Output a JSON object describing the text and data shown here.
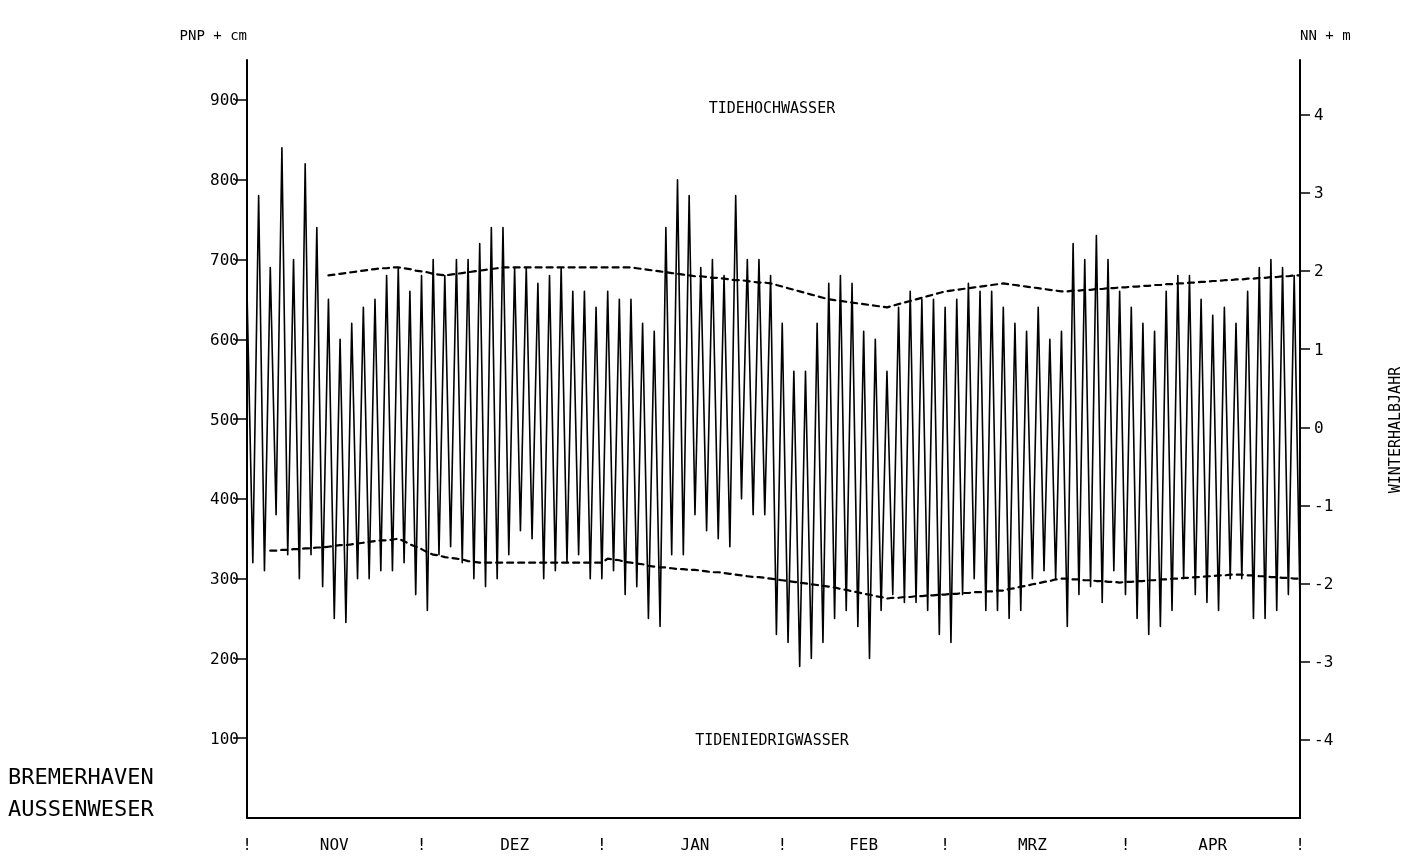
{
  "chart_data": {
    "type": "line",
    "ylabel": "PNP + cm",
    "y2label": "NN + m",
    "annotations": [
      "TIDEHOCHWASSER",
      "TIDENIEDRIGWASSER",
      "BREMERHAVEN",
      "AUSSENWESER",
      "WINTERHALBJAHR"
    ],
    "categories": [
      "!",
      null,
      null,
      null,
      null,
      null,
      null,
      null,
      null,
      null,
      null,
      null,
      null,
      null,
      null,
      "NOV",
      null,
      null,
      null,
      null,
      null,
      null,
      null,
      null,
      null,
      null,
      null,
      null,
      null,
      null,
      "!",
      null,
      null,
      null,
      null,
      null,
      null,
      null,
      null,
      null,
      null,
      null,
      null,
      null,
      null,
      null,
      "DEZ",
      null,
      null,
      null,
      null,
      null,
      null,
      null,
      null,
      null,
      null,
      null,
      null,
      null,
      null,
      "!",
      null,
      null,
      null,
      null,
      null,
      null,
      null,
      null,
      null,
      null,
      null,
      null,
      null,
      null,
      null,
      "JAN",
      null,
      null,
      null,
      null,
      null,
      null,
      null,
      null,
      null,
      null,
      null,
      null,
      null,
      null,
      "!",
      null,
      null,
      null,
      null,
      null,
      null,
      null,
      null,
      null,
      null,
      null,
      null,
      null,
      "FEB",
      null,
      null,
      null,
      null,
      null,
      null,
      null,
      null,
      null,
      null,
      null,
      null,
      null,
      "!",
      null,
      null,
      null,
      null,
      null,
      null,
      null,
      null,
      null,
      null,
      null,
      null,
      null,
      null,
      "MRZ",
      null,
      null,
      null,
      null,
      null,
      null,
      null,
      null,
      null,
      null,
      null,
      null,
      null,
      null,
      null,
      "!",
      null,
      null,
      null,
      null,
      null,
      null,
      null,
      null,
      null,
      null,
      null,
      null,
      null,
      null,
      "APR",
      null,
      null,
      null,
      null,
      null,
      null,
      null,
      null,
      null,
      null,
      null,
      null,
      null,
      null,
      "!"
    ],
    "ylim": [
      0,
      950
    ],
    "yticks": [
      100,
      200,
      300,
      400,
      500,
      600,
      700,
      800,
      900
    ],
    "y2lim": [
      -5,
      4.7
    ],
    "y2ticks": [
      -4,
      -3,
      -2,
      -1,
      0,
      1,
      2,
      3,
      4
    ],
    "grid": false,
    "marker": "none",
    "series": [
      {
        "color": "#000000",
        "line_style": "solid",
        "values": [
          660,
          320,
          780,
          310,
          690,
          380,
          840,
          330,
          700,
          300,
          820,
          330,
          740,
          290,
          650,
          250,
          600,
          245,
          620,
          300,
          640,
          300,
          650,
          310,
          680,
          310,
          690,
          320,
          660,
          280,
          680,
          260,
          700,
          330,
          680,
          340,
          700,
          320,
          700,
          300,
          720,
          290,
          740,
          300,
          740,
          330,
          690,
          360,
          690,
          350,
          670,
          300,
          680,
          310,
          690,
          320,
          660,
          330,
          660,
          300,
          640,
          300,
          660,
          310,
          650,
          280,
          650,
          290,
          620,
          250,
          610,
          240,
          740,
          330,
          800,
          330,
          780,
          380,
          690,
          360,
          700,
          350,
          680,
          340,
          780,
          400,
          700,
          380,
          700,
          380,
          680,
          230,
          620,
          220,
          560,
          190,
          560,
          200,
          620,
          220,
          670,
          250,
          680,
          260,
          670,
          240,
          610,
          200,
          600,
          260,
          560,
          280,
          640,
          270,
          660,
          270,
          650,
          260,
          650,
          230,
          640,
          220,
          650,
          280,
          670,
          300,
          660,
          260,
          660,
          260,
          640,
          250,
          620,
          260,
          610,
          300,
          640,
          310,
          600,
          300,
          610,
          240,
          720,
          280,
          700,
          290,
          730,
          270,
          700,
          310,
          660,
          280,
          640,
          250,
          620,
          230,
          610,
          240,
          660,
          260,
          680,
          300,
          680,
          280,
          650,
          270,
          630,
          260,
          640,
          300,
          620,
          300,
          660,
          250,
          690,
          250,
          700,
          260,
          690,
          280,
          680,
          270
        ]
      },
      {
        "color": "#000000",
        "line_style": "dashed",
        "values": [
          null,
          null,
          null,
          null,
          null,
          null,
          null,
          null,
          null,
          null,
          null,
          null,
          null,
          null,
          680,
          681,
          682,
          683,
          684,
          685,
          686,
          687,
          688,
          689,
          689,
          690,
          690,
          689,
          688,
          686,
          685,
          684,
          682,
          681,
          680,
          681,
          682,
          683,
          684,
          685,
          686,
          687,
          688,
          689,
          690,
          690,
          690,
          690,
          690,
          690,
          690,
          690,
          690,
          690,
          690,
          690,
          690,
          690,
          690,
          690,
          690,
          690,
          690,
          690,
          690,
          690,
          690,
          689,
          688,
          687,
          686,
          685,
          684,
          683,
          682,
          681,
          680,
          679,
          679,
          678,
          677,
          677,
          676,
          675,
          674,
          674,
          673,
          672,
          671,
          671,
          670,
          668,
          666,
          664,
          662,
          660,
          658,
          656,
          654,
          652,
          650,
          649,
          648,
          647,
          646,
          645,
          644,
          643,
          642,
          641,
          640,
          642,
          644,
          646,
          648,
          650,
          652,
          654,
          656,
          658,
          660,
          661,
          662,
          663,
          664,
          665,
          666,
          667,
          668,
          669,
          670,
          669,
          668,
          667,
          666,
          665,
          664,
          663,
          662,
          661,
          660,
          660,
          661,
          661,
          662,
          662,
          663,
          663,
          664,
          664,
          665,
          665,
          666,
          666,
          667,
          667,
          668,
          668,
          669,
          669,
          670,
          670,
          671,
          671,
          672,
          672,
          673,
          673,
          674,
          674,
          675,
          675,
          676,
          676,
          677,
          677,
          678,
          678,
          679,
          679,
          680,
          680
        ]
      },
      {
        "color": "#000000",
        "line_style": "dashed",
        "values": [
          null,
          null,
          null,
          null,
          335,
          335,
          336,
          336,
          337,
          337,
          338,
          338,
          339,
          339,
          340,
          341,
          342,
          342,
          343,
          344,
          345,
          346,
          347,
          348,
          348,
          349,
          350,
          347,
          343,
          340,
          337,
          333,
          330,
          329,
          327,
          326,
          325,
          324,
          322,
          321,
          320,
          320,
          320,
          320,
          320,
          320,
          320,
          320,
          320,
          320,
          320,
          320,
          320,
          320,
          320,
          320,
          320,
          320,
          320,
          320,
          320,
          320,
          325,
          324,
          323,
          321,
          320,
          319,
          318,
          316,
          315,
          314,
          314,
          313,
          312,
          312,
          311,
          311,
          310,
          309,
          308,
          308,
          307,
          306,
          305,
          304,
          303,
          302,
          302,
          301,
          300,
          299,
          298,
          297,
          296,
          295,
          294,
          293,
          292,
          291,
          290,
          289,
          287,
          286,
          284,
          283,
          281,
          280,
          278,
          277,
          275,
          276,
          276,
          277,
          277,
          278,
          278,
          279,
          279,
          280,
          280,
          281,
          281,
          282,
          282,
          283,
          283,
          284,
          284,
          285,
          285,
          287,
          288,
          290,
          291,
          293,
          294,
          296,
          297,
          299,
          300,
          300,
          299,
          299,
          298,
          298,
          297,
          297,
          296,
          296,
          295,
          296,
          296,
          297,
          297,
          298,
          298,
          299,
          299,
          300,
          300,
          301,
          301,
          302,
          302,
          303,
          303,
          304,
          304,
          305,
          305,
          305,
          304,
          304,
          303,
          303,
          302,
          302,
          301,
          301,
          300,
          300
        ]
      }
    ]
  }
}
